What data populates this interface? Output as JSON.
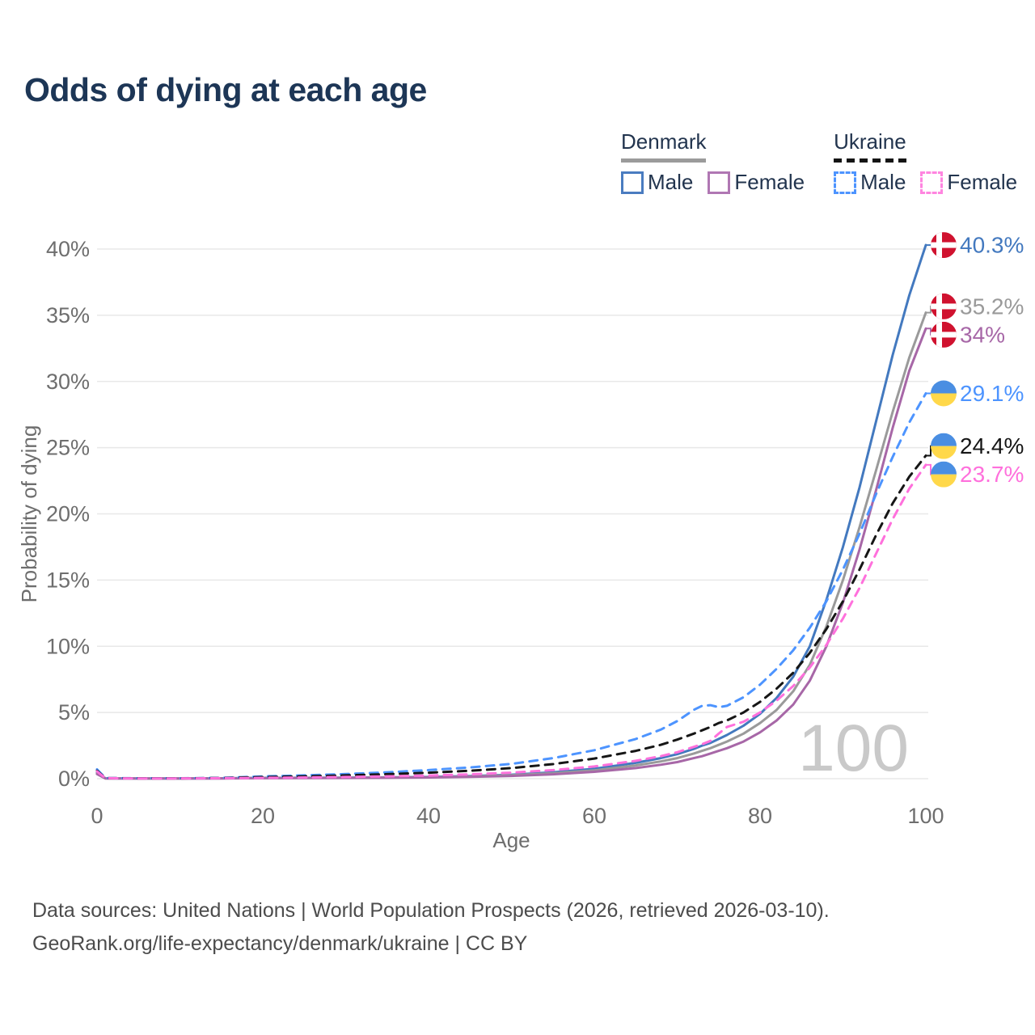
{
  "title": "Odds of dying at each age",
  "legend": {
    "denmark": {
      "label": "Denmark",
      "male": "Male",
      "female": "Female"
    },
    "ukraine": {
      "label": "Ukraine",
      "male": "Male",
      "female": "Female"
    }
  },
  "footer": {
    "line1": "Data sources: United Nations | World Population Prospects (2026, retrieved 2026-03-10).",
    "line2": "GeoRank.org/life-expectancy/denmark/ukraine | CC BY"
  },
  "chart_data": {
    "type": "line",
    "title": "Odds of dying at each age",
    "xlabel": "Age",
    "ylabel": "Probability of dying",
    "xlim": [
      0,
      100
    ],
    "ylim": [
      0,
      40
    ],
    "xticks": [
      0,
      20,
      40,
      60,
      80,
      100
    ],
    "yticks": [
      0,
      5,
      10,
      15,
      20,
      25,
      30,
      35,
      40
    ],
    "ytick_suffix": "%",
    "grid": "horizontal",
    "legend_position": "top-right",
    "watermark": "100",
    "watermark_color": "#c9c9c9",
    "grid_color": "#e8e8e8",
    "tick_color": "#6e6e6e",
    "flags": {
      "denmark": {
        "bg": "#d0122f",
        "cross": "#ffffff"
      },
      "ukraine": {
        "top": "#4a8ee2",
        "bottom": "#ffd84a"
      }
    },
    "ages": [
      0,
      1,
      5,
      10,
      15,
      20,
      25,
      30,
      35,
      40,
      45,
      50,
      55,
      60,
      65,
      68,
      70,
      72,
      73,
      74,
      75,
      76,
      78,
      80,
      82,
      84,
      86,
      88,
      90,
      92,
      94,
      96,
      98,
      100
    ],
    "series": [
      {
        "id": "denmark-male",
        "country": "Denmark",
        "sex": "Male",
        "style": "solid",
        "color": "#4379bf",
        "flag": "denmark",
        "end_label": "40.3%",
        "values": [
          0.45,
          0.03,
          0.01,
          0.01,
          0.03,
          0.06,
          0.07,
          0.08,
          0.1,
          0.13,
          0.2,
          0.3,
          0.48,
          0.75,
          1.2,
          1.55,
          1.85,
          2.25,
          2.5,
          2.7,
          3.0,
          3.3,
          4.0,
          4.9,
          6.1,
          7.7,
          10.0,
          13.5,
          17.5,
          22.0,
          27.0,
          32.0,
          36.5,
          40.3
        ]
      },
      {
        "id": "denmark-total",
        "country": "Denmark",
        "sex": "Both",
        "style": "solid",
        "color": "#9a9a9a",
        "flag": "denmark",
        "end_label": "35.2%",
        "values": [
          0.4,
          0.025,
          0.01,
          0.01,
          0.025,
          0.05,
          0.06,
          0.07,
          0.09,
          0.11,
          0.17,
          0.26,
          0.41,
          0.63,
          1.0,
          1.3,
          1.55,
          1.9,
          2.1,
          2.3,
          2.55,
          2.8,
          3.4,
          4.2,
          5.2,
          6.6,
          8.6,
          11.5,
          15.0,
          19.0,
          23.3,
          27.7,
          31.8,
          35.2
        ]
      },
      {
        "id": "denmark-female",
        "country": "Denmark",
        "sex": "Female",
        "style": "solid",
        "color": "#a767a7",
        "flag": "denmark",
        "end_label": "34%",
        "values": [
          0.35,
          0.02,
          0.01,
          0.01,
          0.02,
          0.035,
          0.045,
          0.055,
          0.07,
          0.09,
          0.14,
          0.21,
          0.33,
          0.52,
          0.8,
          1.05,
          1.25,
          1.55,
          1.7,
          1.9,
          2.1,
          2.3,
          2.8,
          3.5,
          4.4,
          5.6,
          7.4,
          10.0,
          13.3,
          17.3,
          21.8,
          26.5,
          30.8,
          34.0
        ]
      },
      {
        "id": "ukraine-male",
        "country": "Ukraine",
        "sex": "Male",
        "style": "dashed",
        "color": "#4d94ff",
        "flag": "ukraine",
        "end_label": "29.1%",
        "values": [
          0.7,
          0.05,
          0.03,
          0.03,
          0.06,
          0.17,
          0.25,
          0.35,
          0.48,
          0.65,
          0.85,
          1.12,
          1.55,
          2.15,
          3.0,
          3.7,
          4.35,
          5.2,
          5.5,
          5.55,
          5.4,
          5.5,
          6.15,
          7.1,
          8.3,
          9.7,
          11.4,
          13.4,
          15.8,
          18.5,
          21.5,
          24.3,
          26.9,
          29.1
        ]
      },
      {
        "id": "ukraine-total",
        "country": "Ukraine",
        "sex": "Both",
        "style": "dashed",
        "color": "#161616",
        "flag": "ukraine",
        "end_label": "24.4%",
        "values": [
          0.6,
          0.04,
          0.025,
          0.025,
          0.05,
          0.12,
          0.18,
          0.25,
          0.34,
          0.45,
          0.6,
          0.8,
          1.1,
          1.52,
          2.1,
          2.55,
          2.95,
          3.4,
          3.65,
          3.9,
          4.2,
          4.4,
          5.0,
          5.8,
          6.8,
          8.0,
          9.5,
          11.3,
          13.4,
          15.8,
          18.4,
          20.8,
          22.8,
          24.4
        ]
      },
      {
        "id": "ukraine-female",
        "country": "Ukraine",
        "sex": "Female",
        "style": "dashed",
        "color": "#ff70dc",
        "flag": "ukraine",
        "end_label": "23.7%",
        "values": [
          0.55,
          0.035,
          0.02,
          0.02,
          0.035,
          0.06,
          0.09,
          0.13,
          0.18,
          0.24,
          0.33,
          0.46,
          0.65,
          0.92,
          1.35,
          1.7,
          2.0,
          2.4,
          2.6,
          2.85,
          3.4,
          3.9,
          4.3,
          5.0,
          5.9,
          7.0,
          8.4,
          10.1,
          12.1,
          14.4,
          17.0,
          19.6,
          21.9,
          23.7
        ]
      }
    ]
  }
}
